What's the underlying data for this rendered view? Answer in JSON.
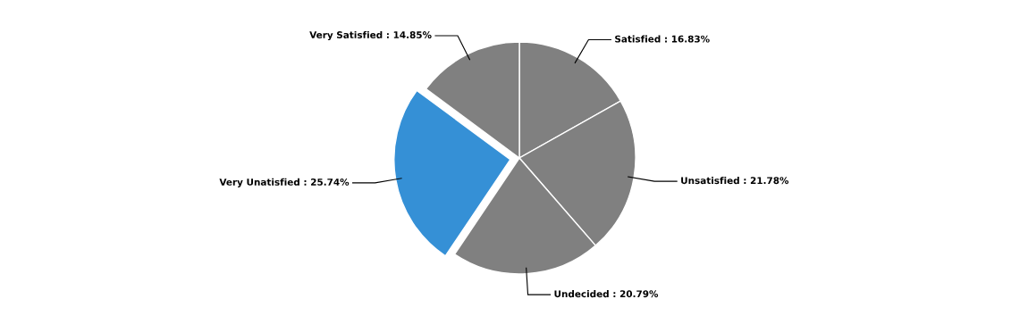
{
  "chart_data": {
    "type": "pie",
    "categories": [
      "Satisfied",
      "Unsatisfied",
      "Undecided",
      "Very Unatisfied",
      "Very Satisfied"
    ],
    "values": [
      16.83,
      21.78,
      20.79,
      25.74,
      14.85
    ],
    "colors": [
      "#808080",
      "#808080",
      "#808080",
      "#3590d6",
      "#808080"
    ],
    "value_labels": [
      "16.83%",
      "21.78%",
      "20.79%",
      "25.74%",
      "14.85%"
    ],
    "legend": false
  }
}
